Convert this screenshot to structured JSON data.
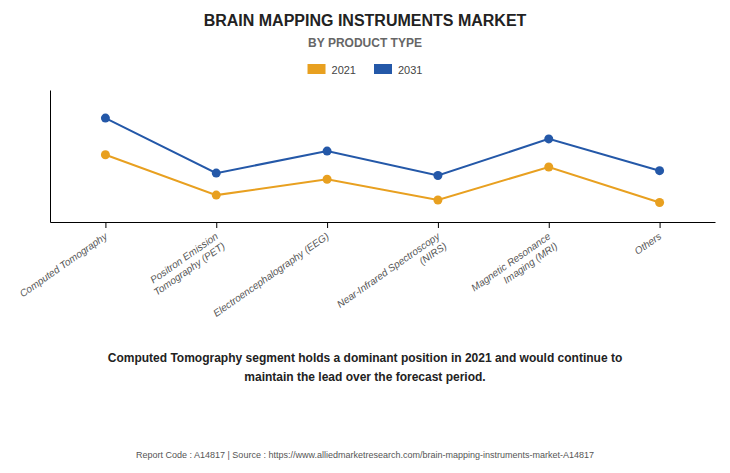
{
  "chart_data": {
    "type": "line",
    "title": "BRAIN MAPPING INSTRUMENTS MARKET",
    "subtitle": "BY PRODUCT TYPE",
    "categories": [
      "Computed Tomography",
      "Positron Emission\nTomography (PET)",
      "Electroencephalography (EEG)",
      "Near-Infrared Spectroscopy\n(NIRS)",
      "Magnetic Resonance\nImaging (MRI)",
      "Others"
    ],
    "series": [
      {
        "name": "2021",
        "color": "#E8A020",
        "values": [
          6.5,
          3.2,
          4.5,
          2.8,
          5.5,
          2.6
        ]
      },
      {
        "name": "2031",
        "color": "#2458A8",
        "values": [
          9.5,
          5.0,
          6.8,
          4.8,
          7.8,
          5.2
        ]
      }
    ],
    "ylim": [
      1.0,
      11.8
    ],
    "grid": false,
    "tick_labels": "x",
    "legend": "top",
    "marker": "circle",
    "annotations": [
      "Computed Tomography segment holds a dominant position in 2021 and would continue to\nmaintain the lead over the forecast period.",
      "Report Code : A14817  |  Source : https://www.alliedmarketresearch.com/brain-mapping-instruments-market-A14817"
    ]
  }
}
